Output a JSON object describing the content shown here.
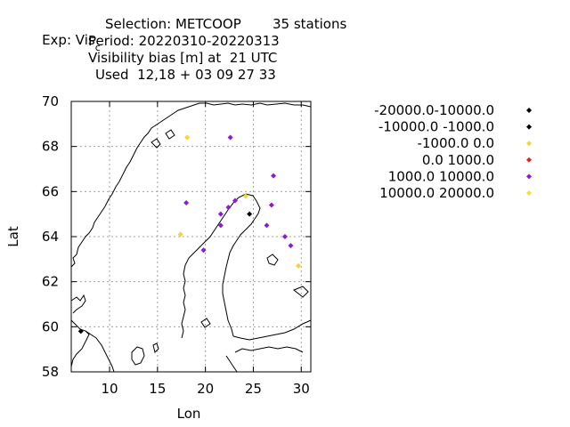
{
  "header": {
    "exp_prefix": "Exp: Vis",
    "exp_subscript": "c",
    "selection": "Selection: METCOOP",
    "station_count": "35 stations",
    "period": "Period: 20220310-20220313",
    "variable": "Visibility bias [m] at  21 UTC",
    "used": "Used  12,18 + 03 09 27 33"
  },
  "chart_data": {
    "type": "scatter",
    "xlabel": "Lon",
    "ylabel": "Lat",
    "xlim": [
      6,
      31
    ],
    "ylim": [
      58,
      70
    ],
    "xticks": [
      10,
      15,
      20,
      25,
      30
    ],
    "yticks": [
      58,
      60,
      62,
      64,
      66,
      68,
      70
    ],
    "grid": true,
    "legend_position": "right",
    "series": [
      {
        "name": "-20000.0-10000.0",
        "color": "#000000",
        "points": []
      },
      {
        "name": "-10000.0 -1000.0",
        "color": "#000000",
        "points": [
          [
            7.0,
            59.8
          ],
          [
            24.6,
            65.0
          ]
        ]
      },
      {
        "name": "-1000.0 0.0",
        "color": "#f5d33a",
        "points": [
          [
            18.1,
            68.4
          ],
          [
            17.4,
            64.1
          ],
          [
            24.2,
            65.8
          ],
          [
            29.7,
            62.7
          ]
        ]
      },
      {
        "name": "0.0 1000.0",
        "color": "#d42a1e",
        "points": []
      },
      {
        "name": "1000.0 10000.0",
        "color": "#8b1ad6",
        "points": [
          [
            22.6,
            68.4
          ],
          [
            27.1,
            66.7
          ],
          [
            18.0,
            65.5
          ],
          [
            21.6,
            65.0
          ],
          [
            22.4,
            65.3
          ],
          [
            23.1,
            65.6
          ],
          [
            26.9,
            65.4
          ],
          [
            21.6,
            64.5
          ],
          [
            26.4,
            64.5
          ],
          [
            28.3,
            64.0
          ],
          [
            28.9,
            63.6
          ],
          [
            19.8,
            63.4
          ]
        ]
      },
      {
        "name": "10000.0 20000.0",
        "color": "#f2e03a",
        "points": []
      }
    ]
  }
}
